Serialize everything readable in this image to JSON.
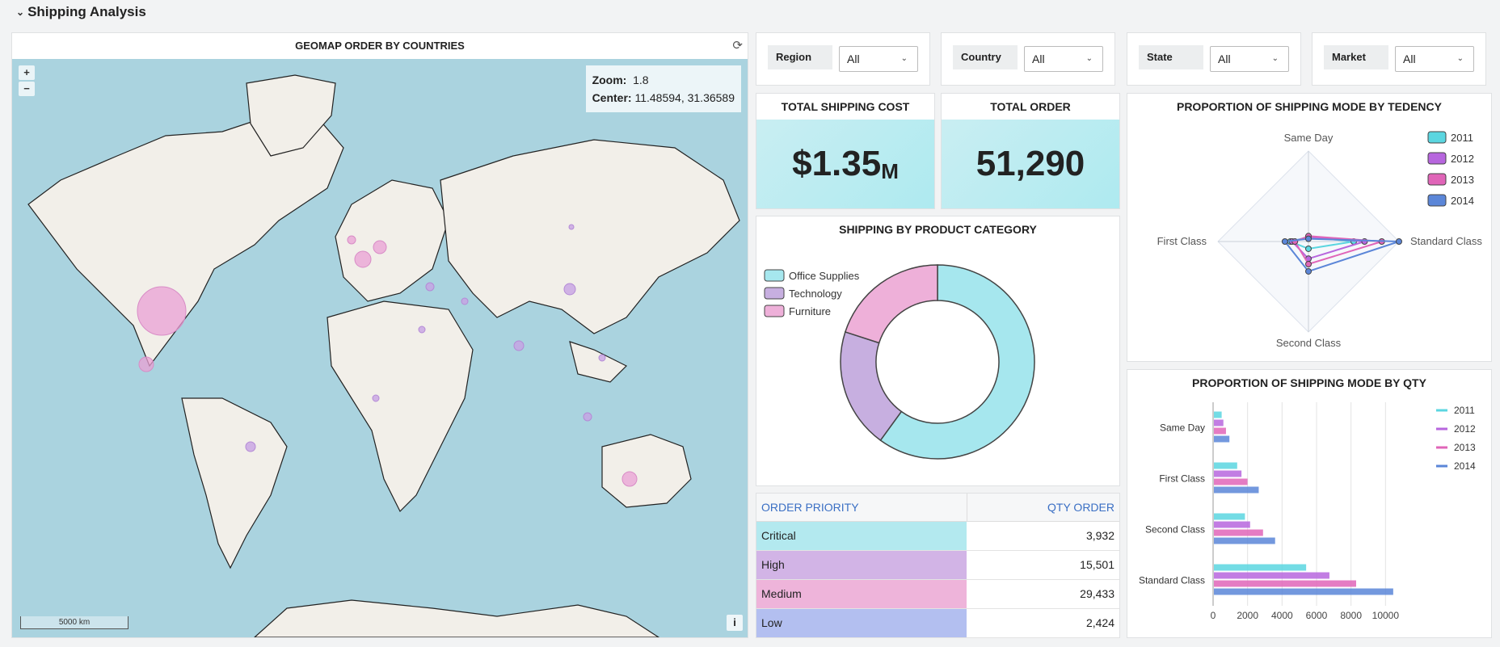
{
  "section": {
    "title": "Shipping Analysis"
  },
  "map": {
    "title": "GEOMAP ORDER BY COUNTRIES",
    "zoom_label": "Zoom:",
    "zoom_value": "1.8",
    "center_label": "Center:",
    "center_value": "11.48594, 31.36589",
    "scale_text": "5000 km",
    "zoom_in": "+",
    "zoom_out": "−",
    "info": "i"
  },
  "filters": [
    {
      "label": "Region",
      "value": "All"
    },
    {
      "label": "Country",
      "value": "All"
    },
    {
      "label": "State",
      "value": "All"
    },
    {
      "label": "Market",
      "value": "All"
    }
  ],
  "kpis": {
    "shipping_cost": {
      "title": "TOTAL SHIPPING COST",
      "value": "$1.35",
      "unit": "M"
    },
    "total_order": {
      "title": "TOTAL ORDER",
      "value": "51,290"
    }
  },
  "donut": {
    "title": "SHIPPING BY PRODUCT CATEGORY",
    "chart_data": {
      "type": "pie",
      "categories": [
        "Office Supplies",
        "Technology",
        "Furniture"
      ],
      "values": [
        60,
        20,
        20
      ],
      "colors": [
        "#a6e7ee",
        "#c7afe0",
        "#eeb0d9"
      ]
    }
  },
  "table": {
    "headers": [
      "ORDER PRIORITY",
      "QTY ORDER"
    ],
    "rows": [
      {
        "priority": "Critical",
        "qty": "3,932"
      },
      {
        "priority": "High",
        "qty": "15,501"
      },
      {
        "priority": "Medium",
        "qty": "29,433"
      },
      {
        "priority": "Low",
        "qty": "2,424"
      }
    ],
    "row_colors": [
      "#b3e9ef",
      "#d2b4e6",
      "#eeb4da",
      "#b3bff0"
    ]
  },
  "radar": {
    "title": "PROPORTION OF SHIPPING MODE BY TEDENCY",
    "chart_data": {
      "type": "radar",
      "axes": [
        "Same Day",
        "Standard Class",
        "Second Class",
        "First Class"
      ],
      "series": [
        {
          "name": "2011",
          "color": "#5bd6e0",
          "values": [
            0.05,
            0.5,
            0.08,
            0.2
          ]
        },
        {
          "name": "2012",
          "color": "#b766de",
          "values": [
            0.05,
            0.62,
            0.19,
            0.18
          ]
        },
        {
          "name": "2013",
          "color": "#e065b8",
          "values": [
            0.06,
            0.81,
            0.25,
            0.15
          ]
        },
        {
          "name": "2014",
          "color": "#5b86d8",
          "values": [
            0.03,
            1.0,
            0.33,
            0.26
          ]
        }
      ]
    }
  },
  "bars": {
    "title": "PROPORTION OF SHIPPING MODE BY QTY",
    "chart_data": {
      "type": "bar",
      "orientation": "horizontal",
      "categories": [
        "Same Day",
        "First Class",
        "Second Class",
        "Standard Class"
      ],
      "xlim": [
        0,
        10500
      ],
      "ticks": [
        0,
        2000,
        4000,
        6000,
        8000,
        10000
      ],
      "series": [
        {
          "name": "2011",
          "color": "#5bd6e0",
          "values": [
            450,
            1350,
            1800,
            5350
          ]
        },
        {
          "name": "2012",
          "color": "#b766de",
          "values": [
            550,
            1600,
            2100,
            6700
          ]
        },
        {
          "name": "2013",
          "color": "#e065b8",
          "values": [
            700,
            1950,
            2850,
            8250
          ]
        },
        {
          "name": "2014",
          "color": "#5b86d8",
          "values": [
            900,
            2600,
            3550,
            10400
          ]
        }
      ]
    }
  }
}
